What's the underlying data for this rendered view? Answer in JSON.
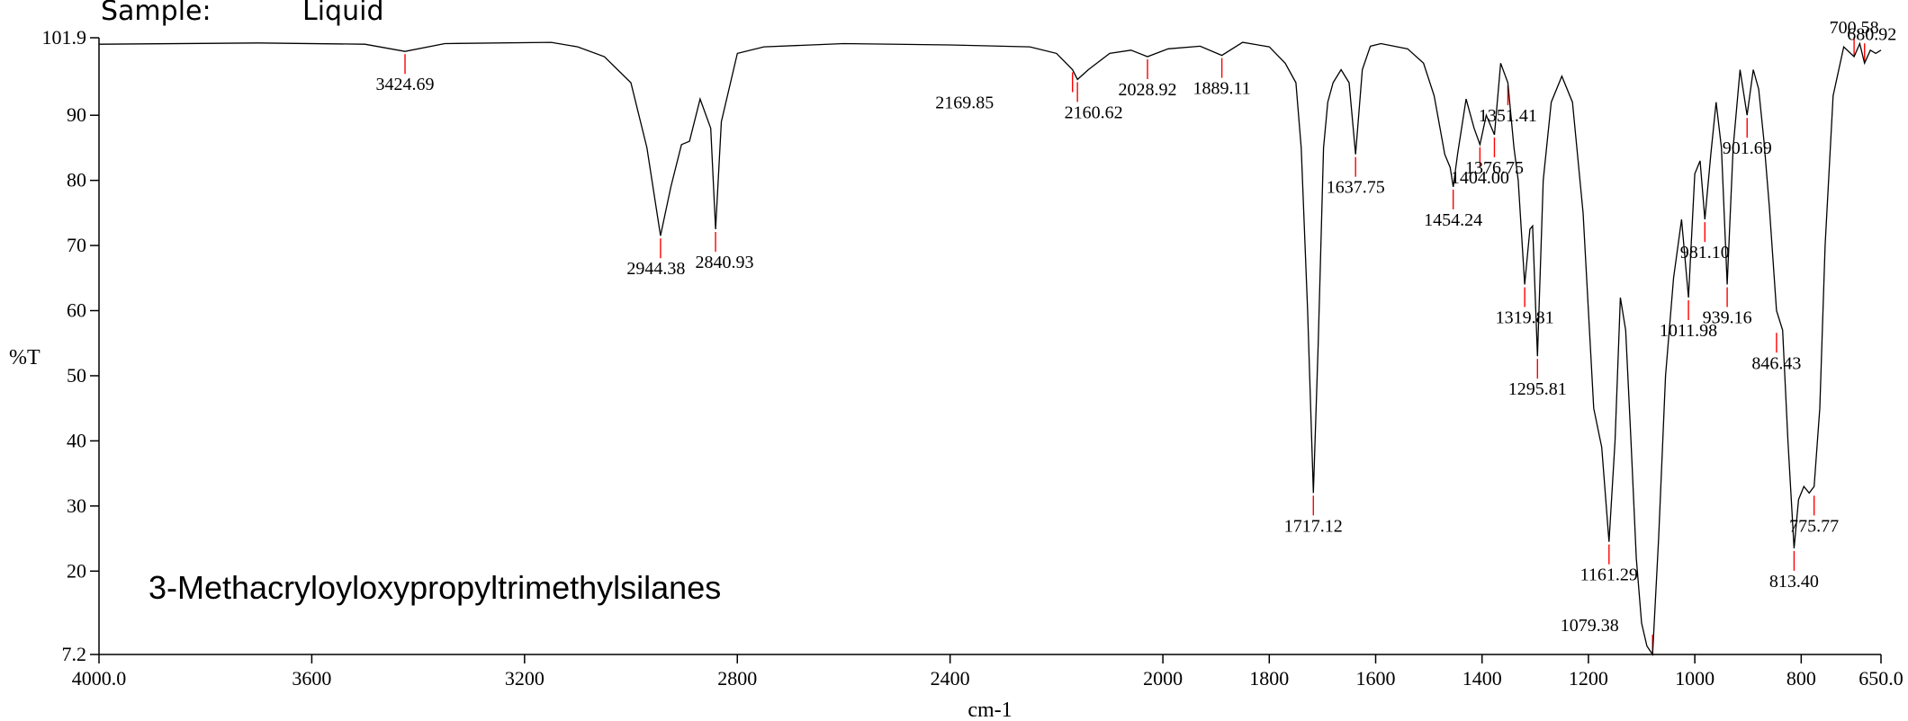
{
  "header": {
    "sample_label": "Sample:",
    "sample_value": "Liquid"
  },
  "chart_data": {
    "type": "line",
    "title": "3-Methacryloyloxypropyltrimethylsilanes",
    "xlabel": "cm-1",
    "ylabel": "%T",
    "xlim": [
      4000.0,
      650.0
    ],
    "ylim": [
      7.2,
      101.9
    ],
    "x_reversed": true,
    "x_ticks": [
      4000,
      3600,
      3200,
      2800,
      2400,
      2000,
      1800,
      1600,
      1400,
      1200,
      1000,
      800,
      650
    ],
    "x_tick_labels": [
      "4000.0",
      "3600",
      "3200",
      "2800",
      "2400",
      "2000",
      "1800",
      "1600",
      "1400",
      "1200",
      "1000",
      "800",
      "650.0"
    ],
    "y_ticks": [
      7.2,
      20,
      30,
      40,
      50,
      60,
      70,
      80,
      90,
      101.9
    ],
    "y_tick_labels": [
      "7.2",
      "20",
      "30",
      "40",
      "50",
      "60",
      "70",
      "80",
      "90",
      "101.9"
    ],
    "grid": false,
    "line_color": "#000000",
    "peak_marker_color": "#ff0000",
    "series": [
      {
        "x": [
          4000,
          3700,
          3500,
          3424.69,
          3350,
          3150,
          3100,
          3050,
          3000,
          2970,
          2944.38,
          2925,
          2905,
          2890,
          2870,
          2850,
          2840.93,
          2830,
          2800,
          2750,
          2600,
          2400,
          2250,
          2200,
          2169.85,
          2160.62,
          2140,
          2100,
          2060,
          2028.92,
          1990,
          1930,
          1889.11,
          1850,
          1800,
          1770,
          1750,
          1740,
          1728,
          1717.12,
          1708,
          1698,
          1690,
          1680,
          1665,
          1650,
          1637.75,
          1625,
          1610,
          1590,
          1540,
          1510,
          1490,
          1470,
          1460,
          1454.24,
          1446,
          1430,
          1415,
          1404.0,
          1392,
          1376.75,
          1365,
          1351.41,
          1340,
          1332,
          1319.81,
          1310,
          1305,
          1295.81,
          1285,
          1270,
          1250,
          1230,
          1210,
          1190,
          1175,
          1161.29,
          1150,
          1140,
          1130,
          1120,
          1110,
          1100,
          1090,
          1079.38,
          1068,
          1055,
          1040,
          1025,
          1011.98,
          1000,
          990,
          981.1,
          970,
          960,
          950,
          939.16,
          928,
          915,
          901.69,
          890,
          880,
          870,
          860,
          846.43,
          835,
          825,
          813.4,
          805,
          795,
          785,
          775.77,
          765,
          755,
          740,
          720,
          700.58,
          690,
          680.92,
          670,
          660,
          650
        ],
        "y": [
          100.9,
          101.1,
          100.9,
          99.8,
          101.0,
          101.2,
          100.5,
          99.0,
          95.0,
          85.0,
          71.5,
          79.0,
          85.5,
          86.0,
          92.5,
          88.0,
          72.5,
          89.0,
          99.5,
          100.5,
          101.0,
          100.8,
          100.5,
          99.5,
          97.0,
          95.5,
          97.0,
          99.5,
          100.0,
          99.0,
          100.2,
          100.6,
          99.2,
          101.2,
          100.5,
          98.0,
          95.0,
          85.0,
          60.0,
          32.0,
          55.0,
          85.0,
          92.0,
          95.0,
          97.0,
          95.0,
          84.0,
          97.0,
          100.6,
          101.0,
          100.2,
          98.0,
          93.0,
          84.0,
          82.0,
          79.0,
          84.0,
          92.5,
          88.0,
          85.5,
          90.0,
          87.0,
          98.0,
          95.0,
          85.0,
          80.0,
          64.0,
          72.5,
          73.0,
          53.0,
          80.0,
          92.0,
          96.0,
          92.0,
          75.0,
          45.0,
          39.0,
          24.5,
          40.0,
          62.0,
          57.0,
          40.0,
          22.0,
          12.0,
          8.5,
          7.2,
          25.0,
          50.0,
          65.0,
          74.0,
          62.0,
          81.0,
          83.0,
          74.0,
          84.0,
          92.0,
          85.0,
          64.0,
          85.0,
          97.0,
          90.0,
          97.0,
          94.0,
          86.0,
          76.0,
          60.0,
          57.0,
          40.0,
          23.5,
          31.0,
          33.0,
          32.0,
          33.0,
          45.0,
          70.0,
          93.0,
          100.5,
          99.0,
          101.0,
          98.0,
          100.0,
          99.5,
          100.0
        ]
      }
    ],
    "peaks": [
      {
        "label": "3424.69",
        "x": 3424.69,
        "y": 99.8
      },
      {
        "label": "2944.38",
        "x": 2944.38,
        "y": 71.5
      },
      {
        "label": "2840.93",
        "x": 2840.93,
        "y": 72.5
      },
      {
        "label": "2169.85",
        "x": 2169.85,
        "y": 97.0
      },
      {
        "label": "2160.62",
        "x": 2160.62,
        "y": 95.5
      },
      {
        "label": "2028.92",
        "x": 2028.92,
        "y": 99.0
      },
      {
        "label": "1889.11",
        "x": 1889.11,
        "y": 99.2
      },
      {
        "label": "1717.12",
        "x": 1717.12,
        "y": 32.0
      },
      {
        "label": "1637.75",
        "x": 1637.75,
        "y": 84.0
      },
      {
        "label": "1454.24",
        "x": 1454.24,
        "y": 79.0
      },
      {
        "label": "1404.00",
        "x": 1404.0,
        "y": 85.5
      },
      {
        "label": "1376.75",
        "x": 1376.75,
        "y": 87.0
      },
      {
        "label": "1351.41",
        "x": 1351.41,
        "y": 95.0
      },
      {
        "label": "1319.81",
        "x": 1319.81,
        "y": 64.0
      },
      {
        "label": "1295.81",
        "x": 1295.81,
        "y": 53.0
      },
      {
        "label": "1161.29",
        "x": 1161.29,
        "y": 24.5
      },
      {
        "label": "1079.38",
        "x": 1079.38,
        "y": 7.2
      },
      {
        "label": "1011.98",
        "x": 1011.98,
        "y": 62.0
      },
      {
        "label": "981.10",
        "x": 981.1,
        "y": 74.0
      },
      {
        "label": "939.16",
        "x": 939.16,
        "y": 64.0
      },
      {
        "label": "901.69",
        "x": 901.69,
        "y": 90.0
      },
      {
        "label": "846.43",
        "x": 846.43,
        "y": 57.0
      },
      {
        "label": "813.40",
        "x": 813.4,
        "y": 23.5
      },
      {
        "label": "775.77",
        "x": 775.77,
        "y": 32.0
      },
      {
        "label": "700.58",
        "x": 700.58,
        "y": 99.0
      },
      {
        "label": "680.92",
        "x": 680.92,
        "y": 98.0
      }
    ]
  }
}
